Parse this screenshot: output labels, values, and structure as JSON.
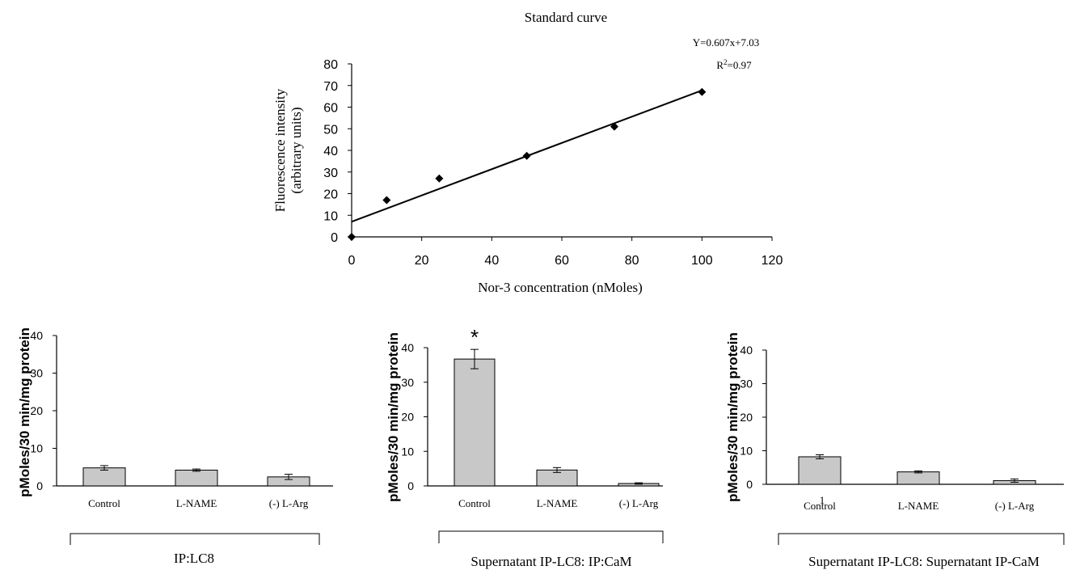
{
  "chart_data": [
    {
      "type": "scatter",
      "title": "Standard curve",
      "xlabel": "Nor-3 concentration (nMoles)",
      "ylabel_line1": "Fluorescence intensity",
      "ylabel_line2": "(arbitrary units)",
      "equation": "Y=0.607x+7.03",
      "r2_prefix": "R",
      "r2_sup": "2",
      "r2_value": "=0.97",
      "xlim": [
        0,
        120
      ],
      "ylim": [
        0,
        80
      ],
      "xticks": [
        0,
        20,
        40,
        60,
        80,
        100,
        120
      ],
      "yticks": [
        0,
        10,
        20,
        30,
        40,
        50,
        60,
        70,
        80
      ],
      "points": [
        {
          "x": 0,
          "y": 0
        },
        {
          "x": 10,
          "y": 17
        },
        {
          "x": 25,
          "y": 27
        },
        {
          "x": 50,
          "y": 37.5
        },
        {
          "x": 75,
          "y": 51
        },
        {
          "x": 100,
          "y": 67
        }
      ],
      "trendline": {
        "slope": 0.607,
        "intercept": 7.03,
        "x_range": [
          0,
          100
        ]
      },
      "grid": false
    },
    {
      "type": "bar",
      "categories": [
        "Control",
        "L-NAME",
        "(-) L-Arg"
      ],
      "values": [
        4.8,
        4.2,
        2.4
      ],
      "errors": [
        0.6,
        0.3,
        0.7
      ],
      "ylabel": "pMoles/30 min/mg protein",
      "ylim": [
        0,
        40
      ],
      "yticks": [
        0,
        10,
        20,
        30,
        40
      ],
      "group_label": "IP:LC8",
      "annotations": []
    },
    {
      "type": "bar",
      "categories": [
        "Control",
        "L-NAME",
        "(-) L-Arg"
      ],
      "values": [
        36.7,
        4.6,
        0.7
      ],
      "errors": [
        2.8,
        0.7,
        0.2
      ],
      "ylabel": "pMoles/30 min/mg protein",
      "ylim": [
        0,
        40
      ],
      "yticks": [
        0,
        10,
        20,
        30,
        40
      ],
      "group_label": "Supernatant IP-LC8: IP:CaM",
      "annotations": [
        "*"
      ]
    },
    {
      "type": "bar",
      "categories": [
        "Control",
        "L-NAME",
        "(-) L-Arg"
      ],
      "values": [
        8.2,
        3.7,
        1.1
      ],
      "errors": [
        0.6,
        0.3,
        0.5
      ],
      "ylabel": "pMoles/30 min/mg protein",
      "ylim": [
        0,
        40
      ],
      "yticks": [
        0,
        10,
        20,
        30,
        40
      ],
      "group_label": "Supernatant IP-LC8: Supernatant IP-CaM",
      "annotations": [
        "1"
      ]
    }
  ],
  "colors": {
    "bar_fill": "#c8c8c8",
    "stroke": "#000000",
    "background": "#ffffff"
  }
}
